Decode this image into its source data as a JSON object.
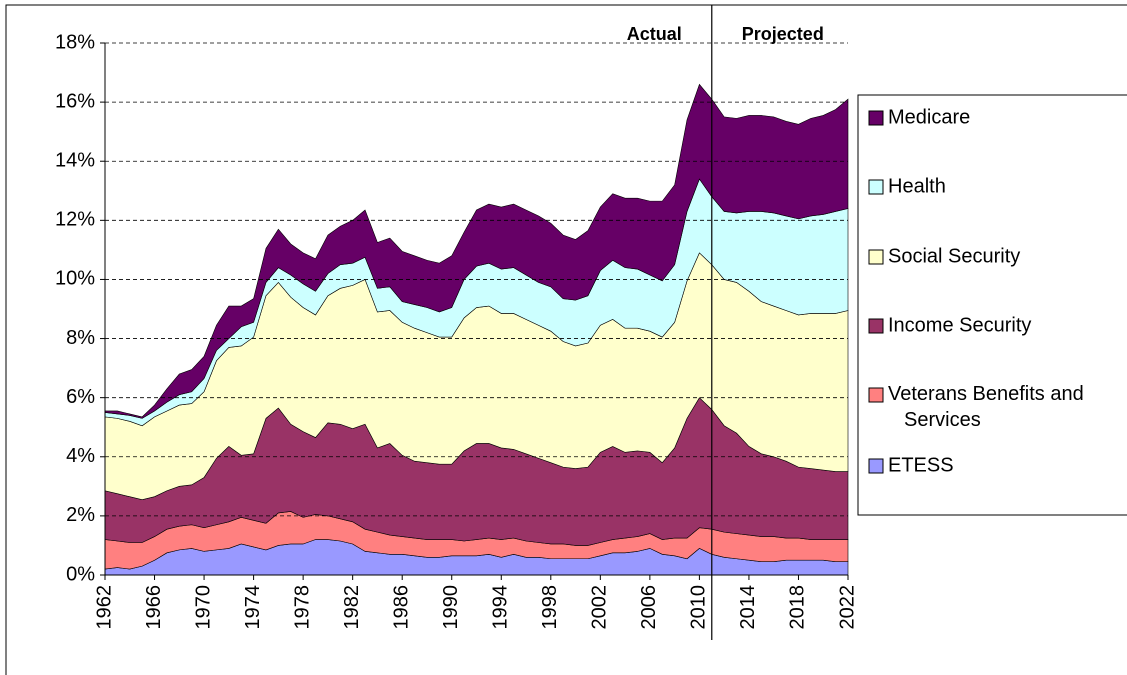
{
  "chart_data": {
    "type": "stacked-area",
    "annotations": [
      "Actual",
      "Projected"
    ],
    "divider_x": 2011,
    "x": [
      1962,
      1963,
      1964,
      1965,
      1966,
      1967,
      1968,
      1969,
      1970,
      1971,
      1972,
      1973,
      1974,
      1975,
      1976,
      1977,
      1978,
      1979,
      1980,
      1981,
      1982,
      1983,
      1984,
      1985,
      1986,
      1987,
      1988,
      1989,
      1990,
      1991,
      1992,
      1993,
      1994,
      1995,
      1996,
      1997,
      1998,
      1999,
      2000,
      2001,
      2002,
      2003,
      2004,
      2005,
      2006,
      2007,
      2008,
      2009,
      2010,
      2011,
      2012,
      2013,
      2014,
      2015,
      2016,
      2017,
      2018,
      2019,
      2020,
      2021,
      2022
    ],
    "xlim": [
      1962,
      2022
    ],
    "xticks": [
      1962,
      1966,
      1970,
      1974,
      1978,
      1982,
      1986,
      1990,
      1994,
      1998,
      2002,
      2006,
      2010,
      2014,
      2018,
      2022
    ],
    "ylim": [
      0,
      18
    ],
    "yticks": [
      {
        "value": 0,
        "label": "0%"
      },
      {
        "value": 2,
        "label": "2%"
      },
      {
        "value": 4,
        "label": "4%"
      },
      {
        "value": 6,
        "label": "6%"
      },
      {
        "value": 8,
        "label": "8%"
      },
      {
        "value": 10,
        "label": "10%"
      },
      {
        "value": 12,
        "label": "12%"
      },
      {
        "value": 14,
        "label": "14%"
      },
      {
        "value": 16,
        "label": "16%"
      },
      {
        "value": 18,
        "label": "18%"
      }
    ],
    "grid": true,
    "legend": "right",
    "series": [
      {
        "name": "ETESS",
        "color": "#9999ff",
        "values": [
          0.2,
          0.25,
          0.2,
          0.3,
          0.5,
          0.75,
          0.85,
          0.9,
          0.8,
          0.85,
          0.9,
          1.05,
          0.95,
          0.85,
          1.0,
          1.05,
          1.05,
          1.2,
          1.2,
          1.15,
          1.05,
          0.8,
          0.75,
          0.7,
          0.7,
          0.65,
          0.6,
          0.6,
          0.65,
          0.65,
          0.65,
          0.7,
          0.6,
          0.7,
          0.6,
          0.6,
          0.55,
          0.55,
          0.55,
          0.55,
          0.65,
          0.75,
          0.75,
          0.8,
          0.9,
          0.7,
          0.65,
          0.55,
          0.9,
          0.7,
          0.6,
          0.55,
          0.5,
          0.45,
          0.45,
          0.5,
          0.5,
          0.5,
          0.5,
          0.45,
          0.45
        ]
      },
      {
        "name": "Veterans Benefits and Services",
        "color": "#ff8080",
        "values": [
          1.0,
          0.9,
          0.9,
          0.8,
          0.8,
          0.8,
          0.8,
          0.8,
          0.8,
          0.85,
          0.9,
          0.9,
          0.9,
          0.9,
          1.1,
          1.1,
          0.9,
          0.85,
          0.8,
          0.75,
          0.75,
          0.75,
          0.7,
          0.65,
          0.6,
          0.6,
          0.6,
          0.6,
          0.55,
          0.5,
          0.55,
          0.55,
          0.6,
          0.55,
          0.55,
          0.5,
          0.5,
          0.5,
          0.45,
          0.45,
          0.45,
          0.45,
          0.5,
          0.5,
          0.5,
          0.5,
          0.6,
          0.7,
          0.7,
          0.85,
          0.85,
          0.85,
          0.85,
          0.85,
          0.85,
          0.75,
          0.75,
          0.7,
          0.7,
          0.75,
          0.75
        ]
      },
      {
        "name": "Income Security",
        "color": "#993366",
        "values": [
          1.65,
          1.6,
          1.55,
          1.45,
          1.35,
          1.3,
          1.35,
          1.35,
          1.7,
          2.25,
          2.55,
          2.1,
          2.25,
          3.55,
          3.55,
          2.95,
          2.9,
          2.6,
          3.15,
          3.2,
          3.15,
          3.55,
          2.85,
          3.1,
          2.75,
          2.6,
          2.6,
          2.55,
          2.55,
          3.05,
          3.25,
          3.2,
          3.1,
          3.0,
          2.95,
          2.85,
          2.75,
          2.6,
          2.6,
          2.65,
          3.05,
          3.15,
          2.9,
          2.9,
          2.75,
          2.6,
          3.05,
          4.05,
          4.4,
          4.05,
          3.6,
          3.4,
          3.0,
          2.8,
          2.7,
          2.6,
          2.4,
          2.4,
          2.35,
          2.3,
          2.3
        ]
      },
      {
        "name": "Social Security",
        "color": "#ffffcc",
        "values": [
          2.5,
          2.55,
          2.55,
          2.5,
          2.7,
          2.7,
          2.75,
          2.75,
          2.9,
          3.3,
          3.35,
          3.7,
          3.95,
          4.15,
          4.25,
          4.3,
          4.2,
          4.15,
          4.3,
          4.6,
          4.85,
          4.9,
          4.6,
          4.5,
          4.5,
          4.5,
          4.4,
          4.3,
          4.3,
          4.5,
          4.6,
          4.65,
          4.55,
          4.6,
          4.55,
          4.5,
          4.45,
          4.25,
          4.15,
          4.2,
          4.3,
          4.3,
          4.2,
          4.15,
          4.1,
          4.25,
          4.25,
          4.65,
          4.9,
          4.9,
          4.95,
          5.1,
          5.25,
          5.15,
          5.1,
          5.1,
          5.15,
          5.25,
          5.3,
          5.35,
          5.45
        ]
      },
      {
        "name": "Health",
        "color": "#ccffff",
        "values": [
          0.15,
          0.15,
          0.2,
          0.25,
          0.2,
          0.3,
          0.35,
          0.4,
          0.45,
          0.35,
          0.3,
          0.65,
          0.5,
          0.45,
          0.5,
          0.75,
          0.8,
          0.8,
          0.75,
          0.8,
          0.75,
          0.75,
          0.8,
          0.8,
          0.7,
          0.8,
          0.85,
          0.85,
          1.0,
          1.3,
          1.4,
          1.45,
          1.5,
          1.55,
          1.5,
          1.45,
          1.5,
          1.45,
          1.55,
          1.6,
          1.85,
          2.0,
          2.05,
          2.0,
          1.9,
          1.9,
          1.95,
          2.35,
          2.5,
          2.3,
          2.3,
          2.35,
          2.7,
          3.05,
          3.15,
          3.2,
          3.25,
          3.3,
          3.35,
          3.45,
          3.45
        ]
      },
      {
        "name": "Medicare",
        "color": "#660066",
        "values": [
          0.05,
          0.1,
          0.05,
          0.05,
          0.2,
          0.45,
          0.7,
          0.75,
          0.75,
          0.85,
          1.1,
          0.7,
          0.8,
          1.15,
          1.3,
          1.05,
          1.05,
          1.1,
          1.3,
          1.3,
          1.45,
          1.6,
          1.55,
          1.65,
          1.7,
          1.65,
          1.6,
          1.65,
          1.75,
          1.6,
          1.9,
          2.0,
          2.1,
          2.15,
          2.2,
          2.25,
          2.15,
          2.15,
          2.05,
          2.2,
          2.15,
          2.25,
          2.35,
          2.4,
          2.5,
          2.7,
          2.7,
          3.1,
          3.2,
          3.3,
          3.2,
          3.2,
          3.25,
          3.25,
          3.25,
          3.2,
          3.2,
          3.3,
          3.35,
          3.45,
          3.7
        ]
      }
    ]
  }
}
